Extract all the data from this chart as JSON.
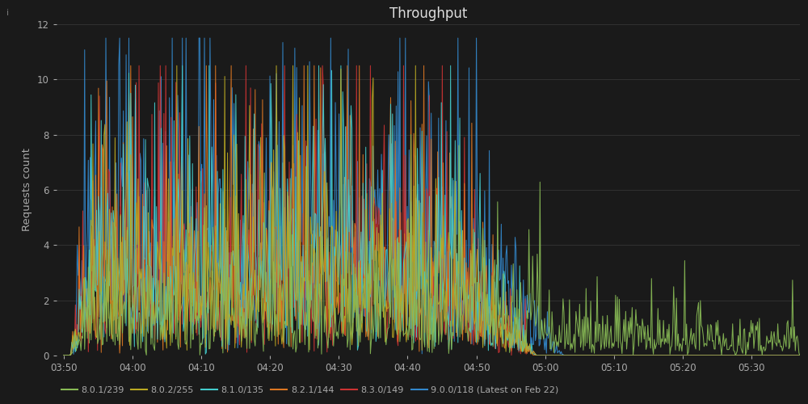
{
  "title": "Throughput",
  "ylabel": "Requests count",
  "background_color": "#1a1a1a",
  "grid_color": "#3a3a3a",
  "text_color": "#aaaaaa",
  "title_color": "#dddddd",
  "ylim": [
    0,
    12
  ],
  "yticks": [
    0,
    2,
    4,
    6,
    8,
    10,
    12
  ],
  "x_start_min": 230,
  "x_end_min": 337,
  "x_tick_labels": [
    "03:50",
    "04:00",
    "04:10",
    "04:20",
    "04:30",
    "04:40",
    "04:50",
    "05:00",
    "05:10",
    "05:20",
    "05:30"
  ],
  "x_tick_positions": [
    230,
    240,
    250,
    260,
    270,
    280,
    290,
    300,
    310,
    320,
    330
  ],
  "series": [
    {
      "label": "8.0.1/239",
      "color": "#88bb55"
    },
    {
      "label": "8.0.2/255",
      "color": "#bbaa22"
    },
    {
      "label": "8.1.0/135",
      "color": "#44cccc"
    },
    {
      "label": "8.2.1/144",
      "color": "#dd7722"
    },
    {
      "label": "8.3.0/149",
      "color": "#cc3333"
    },
    {
      "label": "9.0.0/118 (Latest on Feb 22)",
      "color": "#3388cc"
    }
  ],
  "watermark": "i",
  "n_points": 800
}
